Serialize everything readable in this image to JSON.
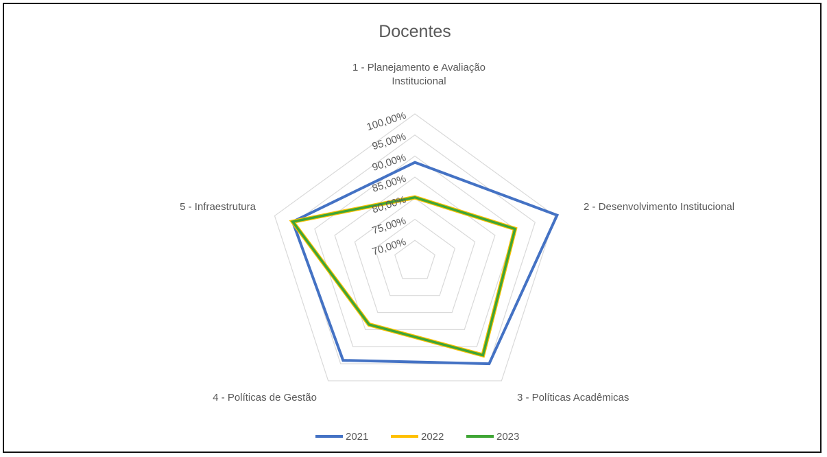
{
  "chart_data": {
    "type": "radar",
    "title": "Docentes",
    "categories": [
      [
        "1 - Planejamento e Avaliação",
        "Institucional"
      ],
      [
        "2 - Desenvolvimento Institucional"
      ],
      [
        "3 - Políticas Acadêmicas"
      ],
      [
        "4 - Políticas de Gestão"
      ],
      [
        "5 - Infraestrutura"
      ]
    ],
    "rlim": [
      65,
      100
    ],
    "tick_values": [
      70,
      75,
      80,
      85,
      90,
      95,
      100
    ],
    "tick_labels": [
      "70,00%",
      "75,00%",
      "80,00%",
      "85,00%",
      "90,00%",
      "95,00%",
      "100,00%"
    ],
    "grid": true,
    "legend_position": "bottom",
    "series": [
      {
        "name": "2021",
        "color": "#4472C4",
        "values": [
          88.5,
          100.5,
          95.0,
          94.0,
          95.5
        ]
      },
      {
        "name": "2022",
        "color": "#FFC000",
        "values": [
          80.2,
          90.0,
          92.5,
          83.5,
          95.5
        ]
      },
      {
        "name": "2023",
        "color": "#3FA535",
        "values": [
          80.2,
          90.0,
          92.5,
          83.5,
          95.5
        ]
      }
    ]
  }
}
